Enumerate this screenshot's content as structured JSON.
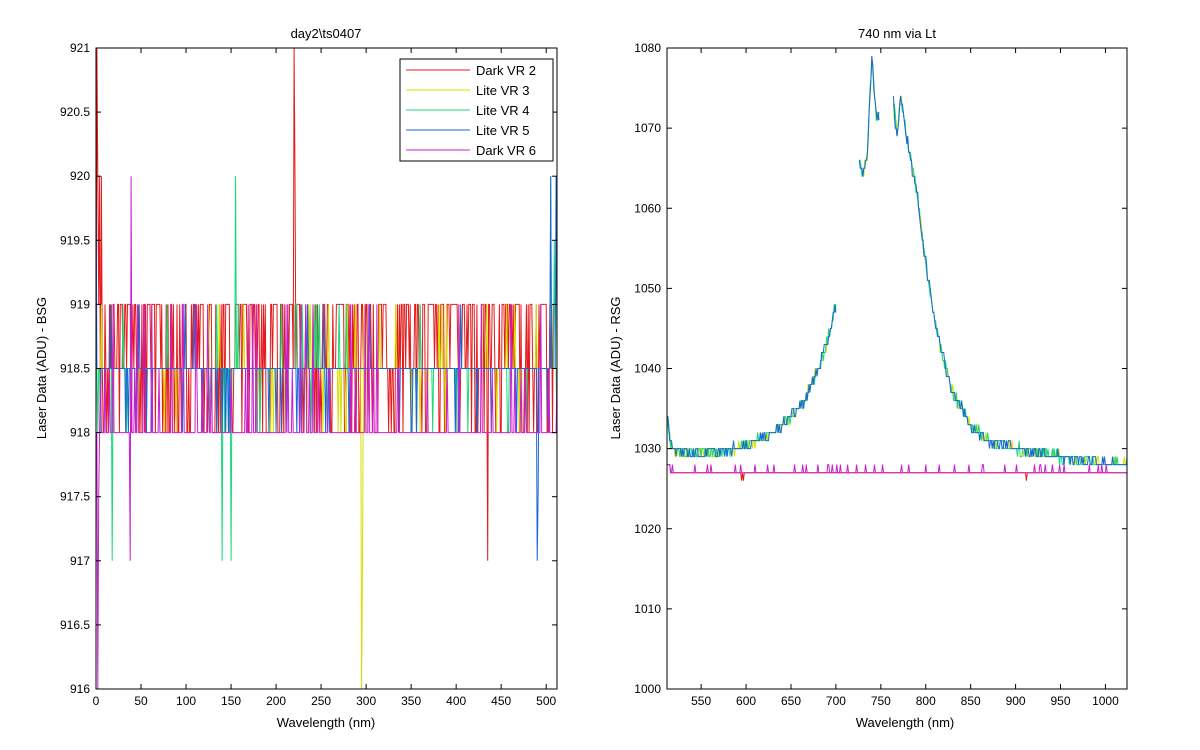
{
  "chart_data": [
    {
      "type": "line",
      "title": "day2\\ts0407",
      "xlabel": "Wavelength (nm)",
      "ylabel": "Laser Data (ADU) - BSG",
      "xlim": [
        0,
        512
      ],
      "ylim": [
        916,
        921
      ],
      "xticks": [
        "0",
        "50",
        "100",
        "150",
        "200",
        "250",
        "300",
        "350",
        "400",
        "450",
        "500"
      ],
      "yticks": [
        "916",
        "916.5",
        "917",
        "917.5",
        "918",
        "918.5",
        "919",
        "919.5",
        "920",
        "920.5",
        "921"
      ],
      "legend_position": "top-right",
      "series": [
        {
          "name": "Dark VR 2",
          "color": "#e41a1c",
          "base": 918.5
        },
        {
          "name": "Lite VR 3",
          "color": "#d4e000",
          "base": 918.5
        },
        {
          "name": "Lite VR 4",
          "color": "#1ad97a",
          "base": 918.5
        },
        {
          "name": "Lite VR 5",
          "color": "#1a66d9",
          "base": 918.5
        },
        {
          "name": "Dark VR 6",
          "color": "#c820d0",
          "base": 918.0
        }
      ]
    },
    {
      "type": "line",
      "title": "740 nm via Lt",
      "xlabel": "Wavelength (nm)",
      "ylabel": "Laser Data (ADU) - RSG",
      "xlim": [
        512,
        1024
      ],
      "ylim": [
        1000,
        1080
      ],
      "xticks": [
        "550",
        "600",
        "650",
        "700",
        "750",
        "800",
        "850",
        "900",
        "950",
        "1000"
      ],
      "yticks": [
        "1000",
        "1010",
        "1020",
        "1030",
        "1040",
        "1050",
        "1060",
        "1070",
        "1080"
      ],
      "series": [
        {
          "name": "Dark VR 2",
          "color": "#e41a1c",
          "level": 1027
        },
        {
          "name": "Lite VR 3",
          "color": "#d4e000",
          "level": 1028
        },
        {
          "name": "Lite VR 4",
          "color": "#1ad97a",
          "level": 1028
        },
        {
          "name": "Lite VR 5",
          "color": "#1a66d9",
          "level": 1028
        },
        {
          "name": "Dark VR 6",
          "color": "#c820d0",
          "level": 1027
        }
      ],
      "peak_profile": [
        [
          512,
          1034
        ],
        [
          515,
          1031
        ],
        [
          520,
          1030
        ],
        [
          540,
          1029.5
        ],
        [
          560,
          1029.5
        ],
        [
          590,
          1030
        ],
        [
          610,
          1031
        ],
        [
          630,
          1032
        ],
        [
          650,
          1034
        ],
        [
          665,
          1036
        ],
        [
          680,
          1040
        ],
        [
          690,
          1043
        ],
        [
          700,
          1048
        ],
        [
          726,
          1066
        ],
        [
          730,
          1064
        ],
        [
          735,
          1067
        ],
        [
          740,
          1079
        ],
        [
          745,
          1071
        ],
        [
          748,
          1072
        ],
        [
          764,
          1073
        ],
        [
          768,
          1069
        ],
        [
          772,
          1074
        ],
        [
          780,
          1068
        ],
        [
          790,
          1062
        ],
        [
          800,
          1053
        ],
        [
          810,
          1046
        ],
        [
          820,
          1041
        ],
        [
          830,
          1037
        ],
        [
          850,
          1033
        ],
        [
          870,
          1031
        ],
        [
          900,
          1030
        ],
        [
          950,
          1029
        ],
        [
          1000,
          1028
        ],
        [
          1024,
          1028
        ]
      ]
    }
  ]
}
